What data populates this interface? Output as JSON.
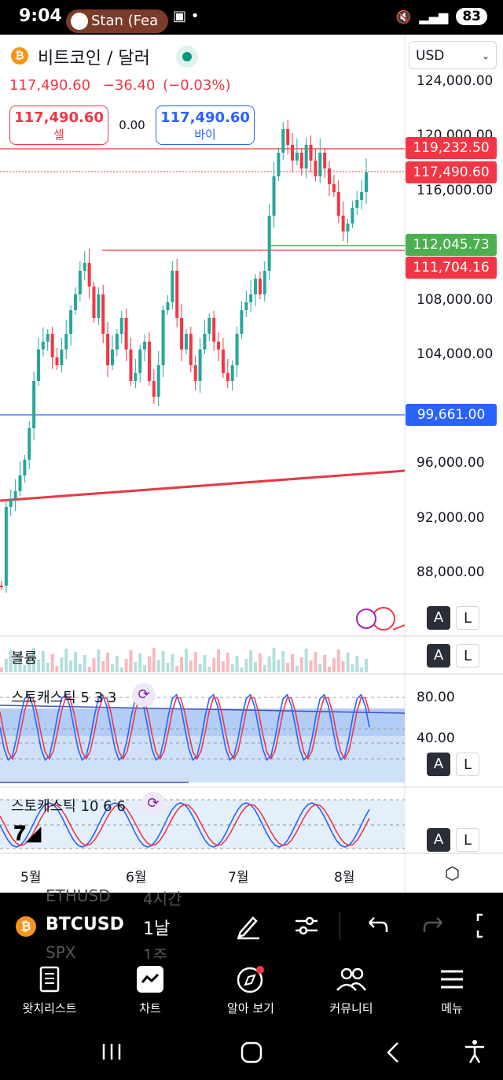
{
  "status_bar": {
    "time": "9:04",
    "notification": "Stan (Fea",
    "battery": "83"
  },
  "header": {
    "symbol_name": "비트코인 / 달러",
    "price": "117,490.60",
    "change": "−36.40",
    "change_pct": "(−0.03%)",
    "sell_price": "117,490.60",
    "sell_label": "셀",
    "spread": "0.00",
    "buy_price": "117,490.60",
    "buy_label": "바이",
    "currency": "USD"
  },
  "price_axis": [
    "124,000.00",
    "120,000.00",
    "116,000.00",
    "108,000.00",
    "104,000.00",
    "96,000.00",
    "92,000.00",
    "88,000.00"
  ],
  "price_tags": [
    {
      "value": "119,232.50",
      "color": "#f23645"
    },
    {
      "value": "117,490.60",
      "color": "#f23645"
    },
    {
      "value": "112,045.73",
      "color": "#4caf50"
    },
    {
      "value": "111,704.16",
      "color": "#f23645"
    },
    {
      "value": "99,661.00",
      "color": "#2962ff"
    }
  ],
  "panes": {
    "volume_label": "볼륨",
    "stoch1_label": "스토캐스틱 5 3 3",
    "stoch1_axis": [
      "80.00",
      "40.00"
    ],
    "stoch2_label": "스토캐스틱 10 6 6"
  },
  "buttons": {
    "a": "A",
    "l": "L"
  },
  "time_axis": [
    "5월",
    "6월",
    "7월",
    "8월"
  ],
  "toolbar": {
    "symbol": "BTCUSD",
    "interval": "1날",
    "ghost_above_symbol": "ETHUSD",
    "ghost_above_interval": "4시간",
    "ghost_below_symbol": "SPX",
    "ghost_below_interval": "1주"
  },
  "bottom_nav": [
    "왓치리스트",
    "차트",
    "알아 보기",
    "커뮤니티",
    "메뉴"
  ],
  "colors": {
    "up": "#26a69a",
    "down": "#f23645",
    "accent": "#2962ff"
  }
}
